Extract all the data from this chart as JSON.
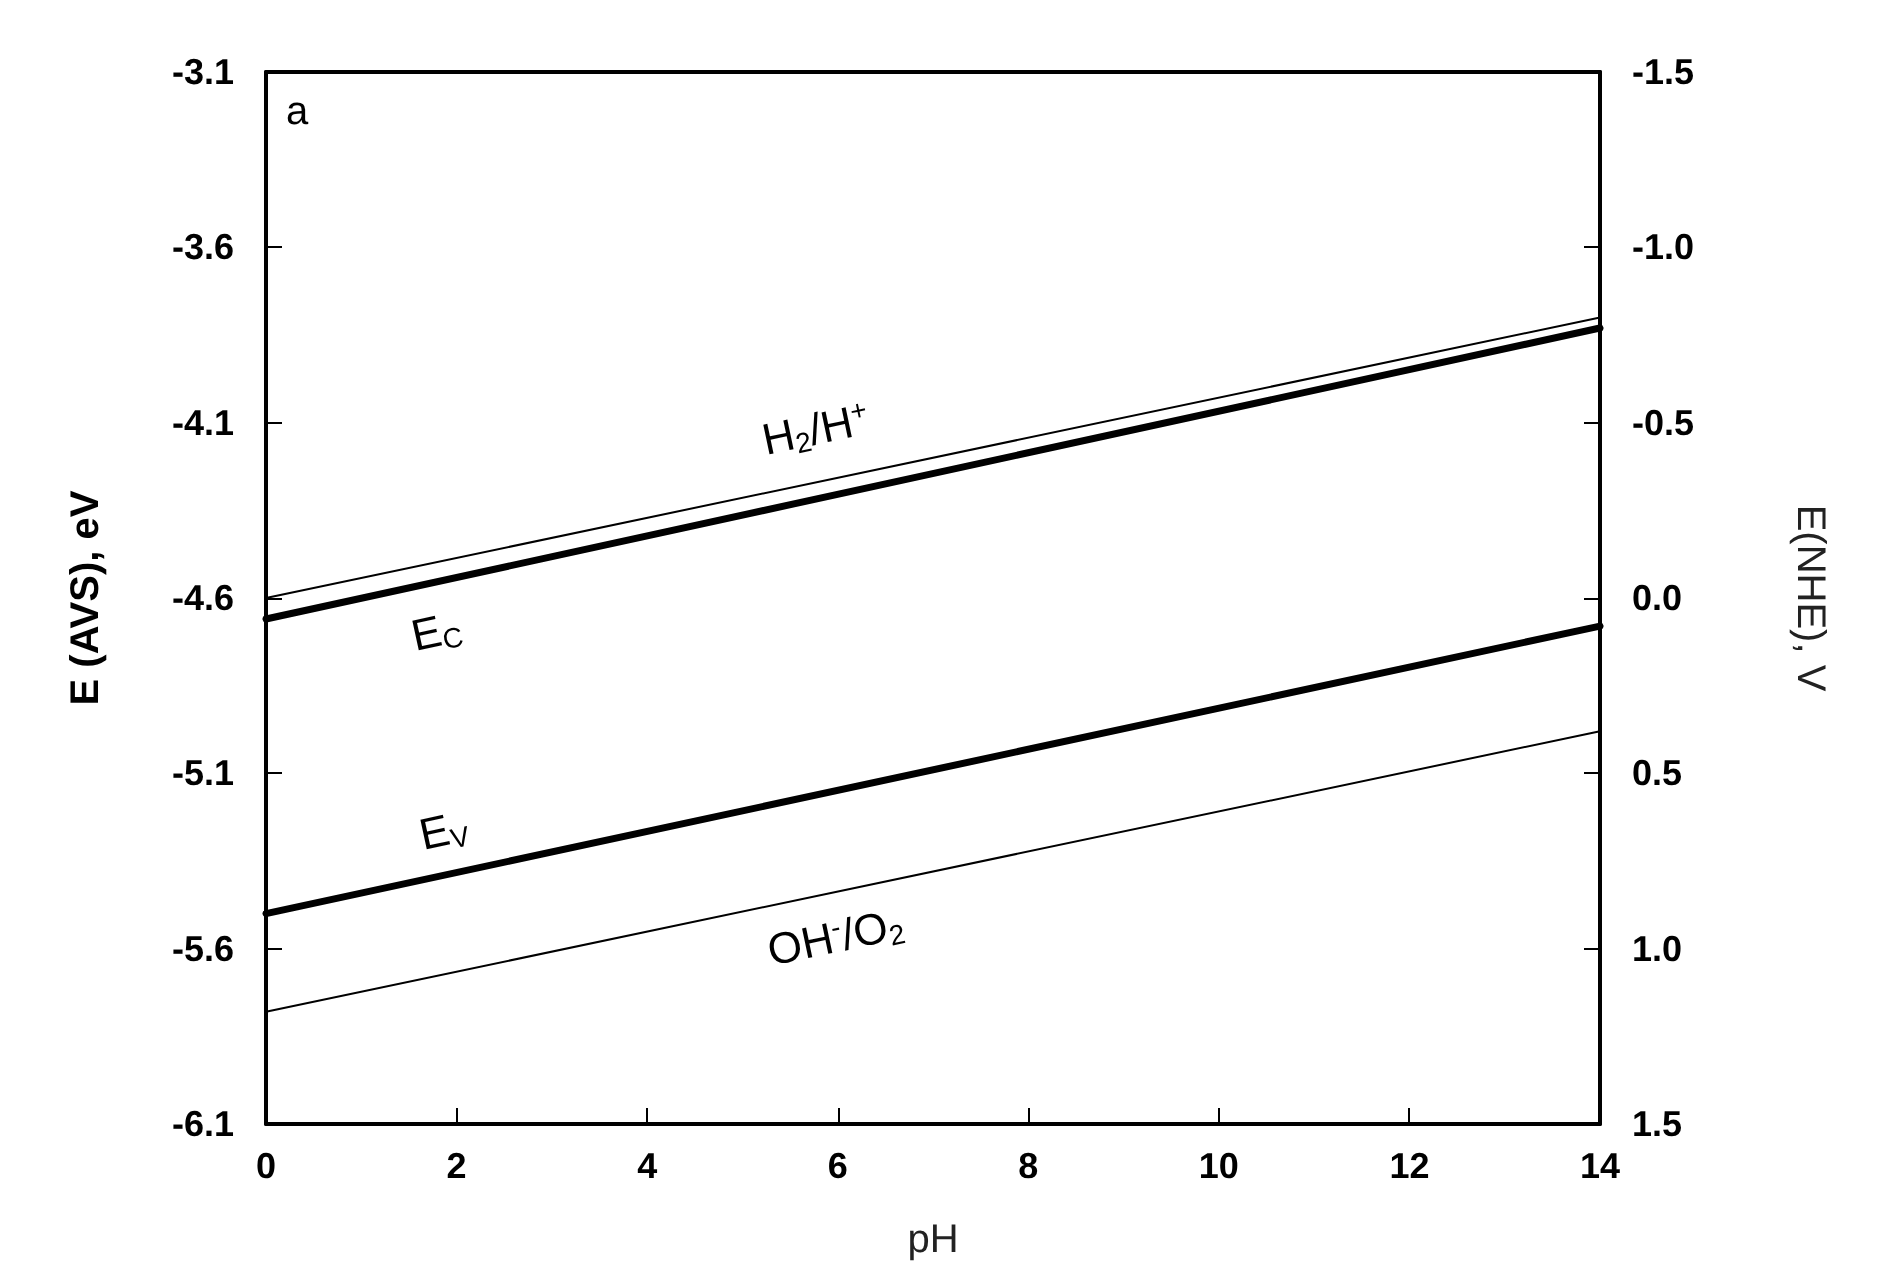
{
  "chart_data": {
    "type": "line",
    "xlabel": "pH",
    "ylabel": "E (AVS), eV",
    "y2label": "E(NHE), V",
    "annotations": [
      "a"
    ],
    "x": [
      0,
      14
    ],
    "series": [
      {
        "name": "H$_{2}$/H$^{+}$",
        "color": "#000000",
        "values": [
          -4.6,
          -3.8
        ]
      },
      {
        "name": "E$_{C}$",
        "color": "#000000",
        "values": [
          -4.66,
          -3.83
        ]
      },
      {
        "name": "E$_{V}$",
        "color": "#000000",
        "values": [
          -5.5,
          -4.68
        ]
      },
      {
        "name": "OH$^{-}$/O$_{2}$",
        "color": "#000000",
        "values": [
          -5.78,
          -4.98
        ]
      }
    ],
    "xlim": [
      0,
      14
    ],
    "xticks": [
      0,
      2,
      4,
      6,
      8,
      10,
      12,
      14
    ],
    "ylim": [
      -6.1,
      -3.1
    ],
    "yticks": [
      -6.1,
      -5.6,
      -5.1,
      -4.6,
      -4.1,
      -3.6,
      -3.1
    ],
    "y2lim": [
      1.5,
      -1.5
    ],
    "y2ticks": [
      {
        "value": 1.5,
        "label": "1.5"
      },
      {
        "value": 1.0,
        "label": "1.0"
      },
      {
        "value": 0.5,
        "label": "0.5"
      },
      {
        "value": 0.0,
        "label": "0.0"
      },
      {
        "value": -0.5,
        "label": "-0.5"
      },
      {
        "value": -1.0,
        "label": "-1.0"
      },
      {
        "value": -1.5,
        "label": "-1.5"
      }
    ],
    "grid": false,
    "legend": false,
    "marker": "none",
    "line_style": "solid"
  }
}
